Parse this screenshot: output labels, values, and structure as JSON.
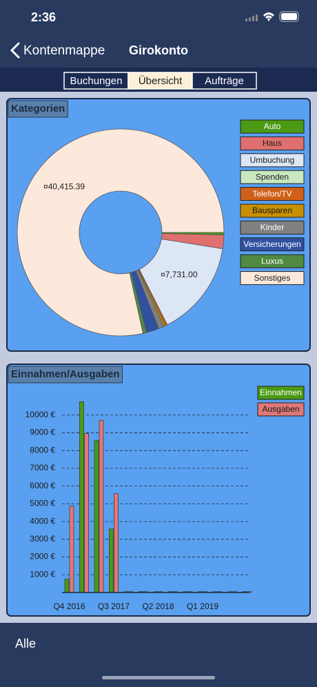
{
  "status_bar": {
    "time": "2:36"
  },
  "nav": {
    "back": "Kontenmappe",
    "title": "Girokonto"
  },
  "segments": [
    "Buchungen",
    "Übersicht",
    "Aufträge"
  ],
  "toolbar": {
    "label": "Alle"
  },
  "chart_data": [
    {
      "type": "pie",
      "title": "Kategorien",
      "categories": [
        "Auto",
        "Haus",
        "Umbuchung",
        "Spenden",
        "Telefon/TV",
        "Bausparen",
        "Kinder",
        "Versicherungen",
        "Luxus",
        "Sonstiges"
      ],
      "values": [
        200,
        1100,
        7731.0,
        0,
        150,
        150,
        450,
        1000,
        300,
        40415.39
      ],
      "value_labels": [
        null,
        null,
        "¤7,731.00",
        null,
        null,
        null,
        null,
        null,
        null,
        "¤40,415.39"
      ],
      "colors": [
        "#4a9a14",
        "#e07070",
        "#dde6f5",
        "#c8e8c0",
        "#d06018",
        "#c89000",
        "#808080",
        "#3050a0",
        "#508a40",
        "#fde8dc"
      ]
    },
    {
      "type": "bar",
      "title": "Einnahmen/Ausgaben",
      "categories": [
        "Q4 2016",
        null,
        null,
        "Q3 2017",
        null,
        null,
        "Q2 2018",
        null,
        null,
        "Q1 2019",
        null,
        null,
        null
      ],
      "series": [
        {
          "name": "Einnahmen",
          "color": "#4a9a14",
          "values": [
            750,
            10750,
            8570,
            3580,
            50,
            50,
            50,
            50,
            50,
            50,
            50,
            50,
            50
          ]
        },
        {
          "name": "Ausgaben",
          "color": "#e07878",
          "values": [
            4870,
            8960,
            9700,
            5570,
            50,
            50,
            50,
            50,
            50,
            50,
            50,
            50,
            50
          ]
        }
      ],
      "ylim": [
        0,
        11000
      ],
      "yticks": [
        {
          "value": 1000,
          "label": "1000 €"
        },
        {
          "value": 2000,
          "label": "2000 €"
        },
        {
          "value": 3000,
          "label": "3000 €"
        },
        {
          "value": 4000,
          "label": "4000 €"
        },
        {
          "value": 5000,
          "label": "5000 €"
        },
        {
          "value": 6000,
          "label": "6000 €"
        },
        {
          "value": 7000,
          "label": "7000 €"
        },
        {
          "value": 8000,
          "label": "8000 €"
        },
        {
          "value": 9000,
          "label": "9000 €"
        },
        {
          "value": 10000,
          "label": "10000 €"
        }
      ],
      "grid": true,
      "legend": "top-right"
    }
  ]
}
